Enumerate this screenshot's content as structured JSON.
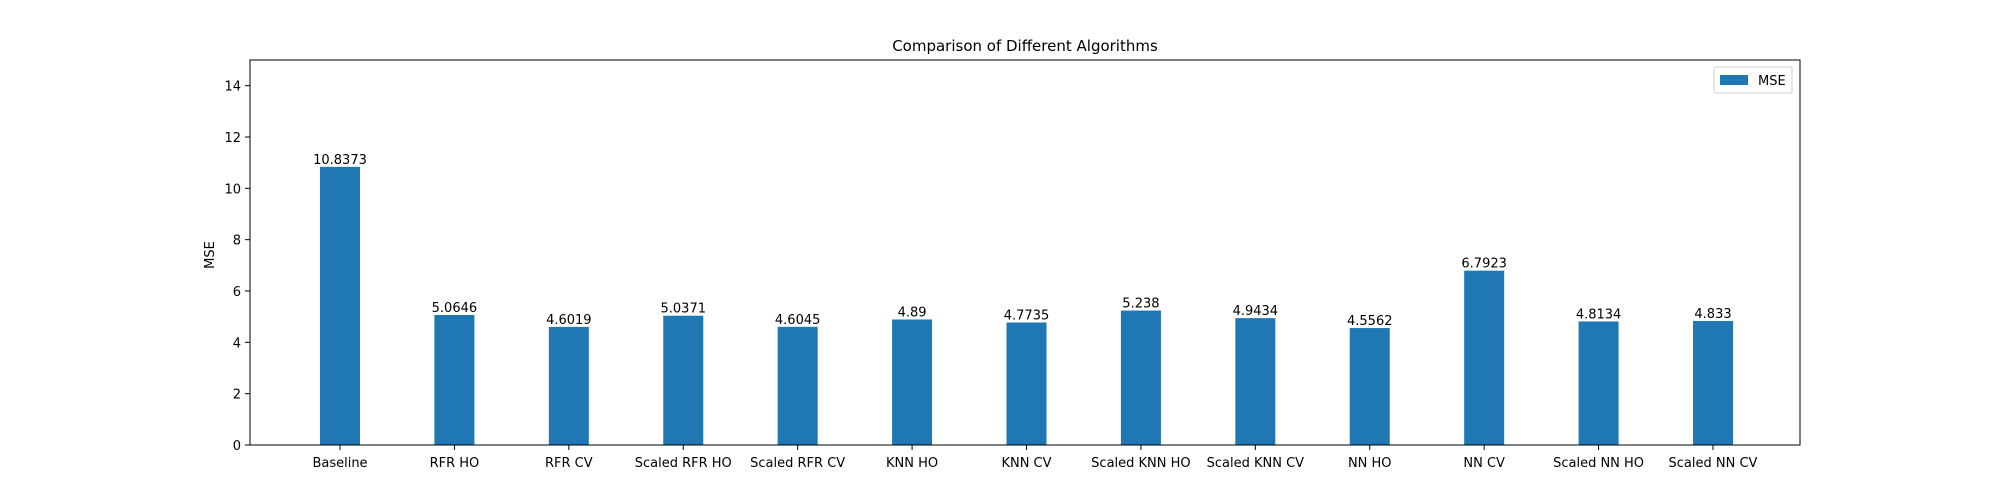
{
  "chart_data": {
    "type": "bar",
    "title": "Comparison of Different Algorithms",
    "xlabel": "",
    "ylabel": "MSE",
    "ylim": [
      0,
      15
    ],
    "yticks": [
      0,
      2,
      4,
      6,
      8,
      10,
      12,
      14
    ],
    "categories": [
      "Baseline",
      "RFR HO",
      "RFR CV",
      "Scaled RFR HO",
      "Scaled RFR CV",
      "KNN HO",
      "KNN CV",
      "Scaled KNN HO",
      "Scaled KNN CV",
      "NN HO",
      "NN CV",
      "Scaled NN HO",
      "Scaled NN CV"
    ],
    "series": [
      {
        "name": "MSE",
        "color": "#1f77b4",
        "values": [
          10.8373,
          5.0646,
          4.6019,
          5.0371,
          4.6045,
          4.89,
          4.7735,
          5.238,
          4.9434,
          4.5562,
          6.7923,
          4.8134,
          4.833
        ],
        "value_labels": [
          "10.8373",
          "5.0646",
          "4.6019",
          "5.0371",
          "4.6045",
          "4.89",
          "4.7735",
          "5.238",
          "4.9434",
          "4.5562",
          "6.7923",
          "4.8134",
          "4.833"
        ]
      }
    ],
    "legend": "top-right",
    "grid": false
  }
}
